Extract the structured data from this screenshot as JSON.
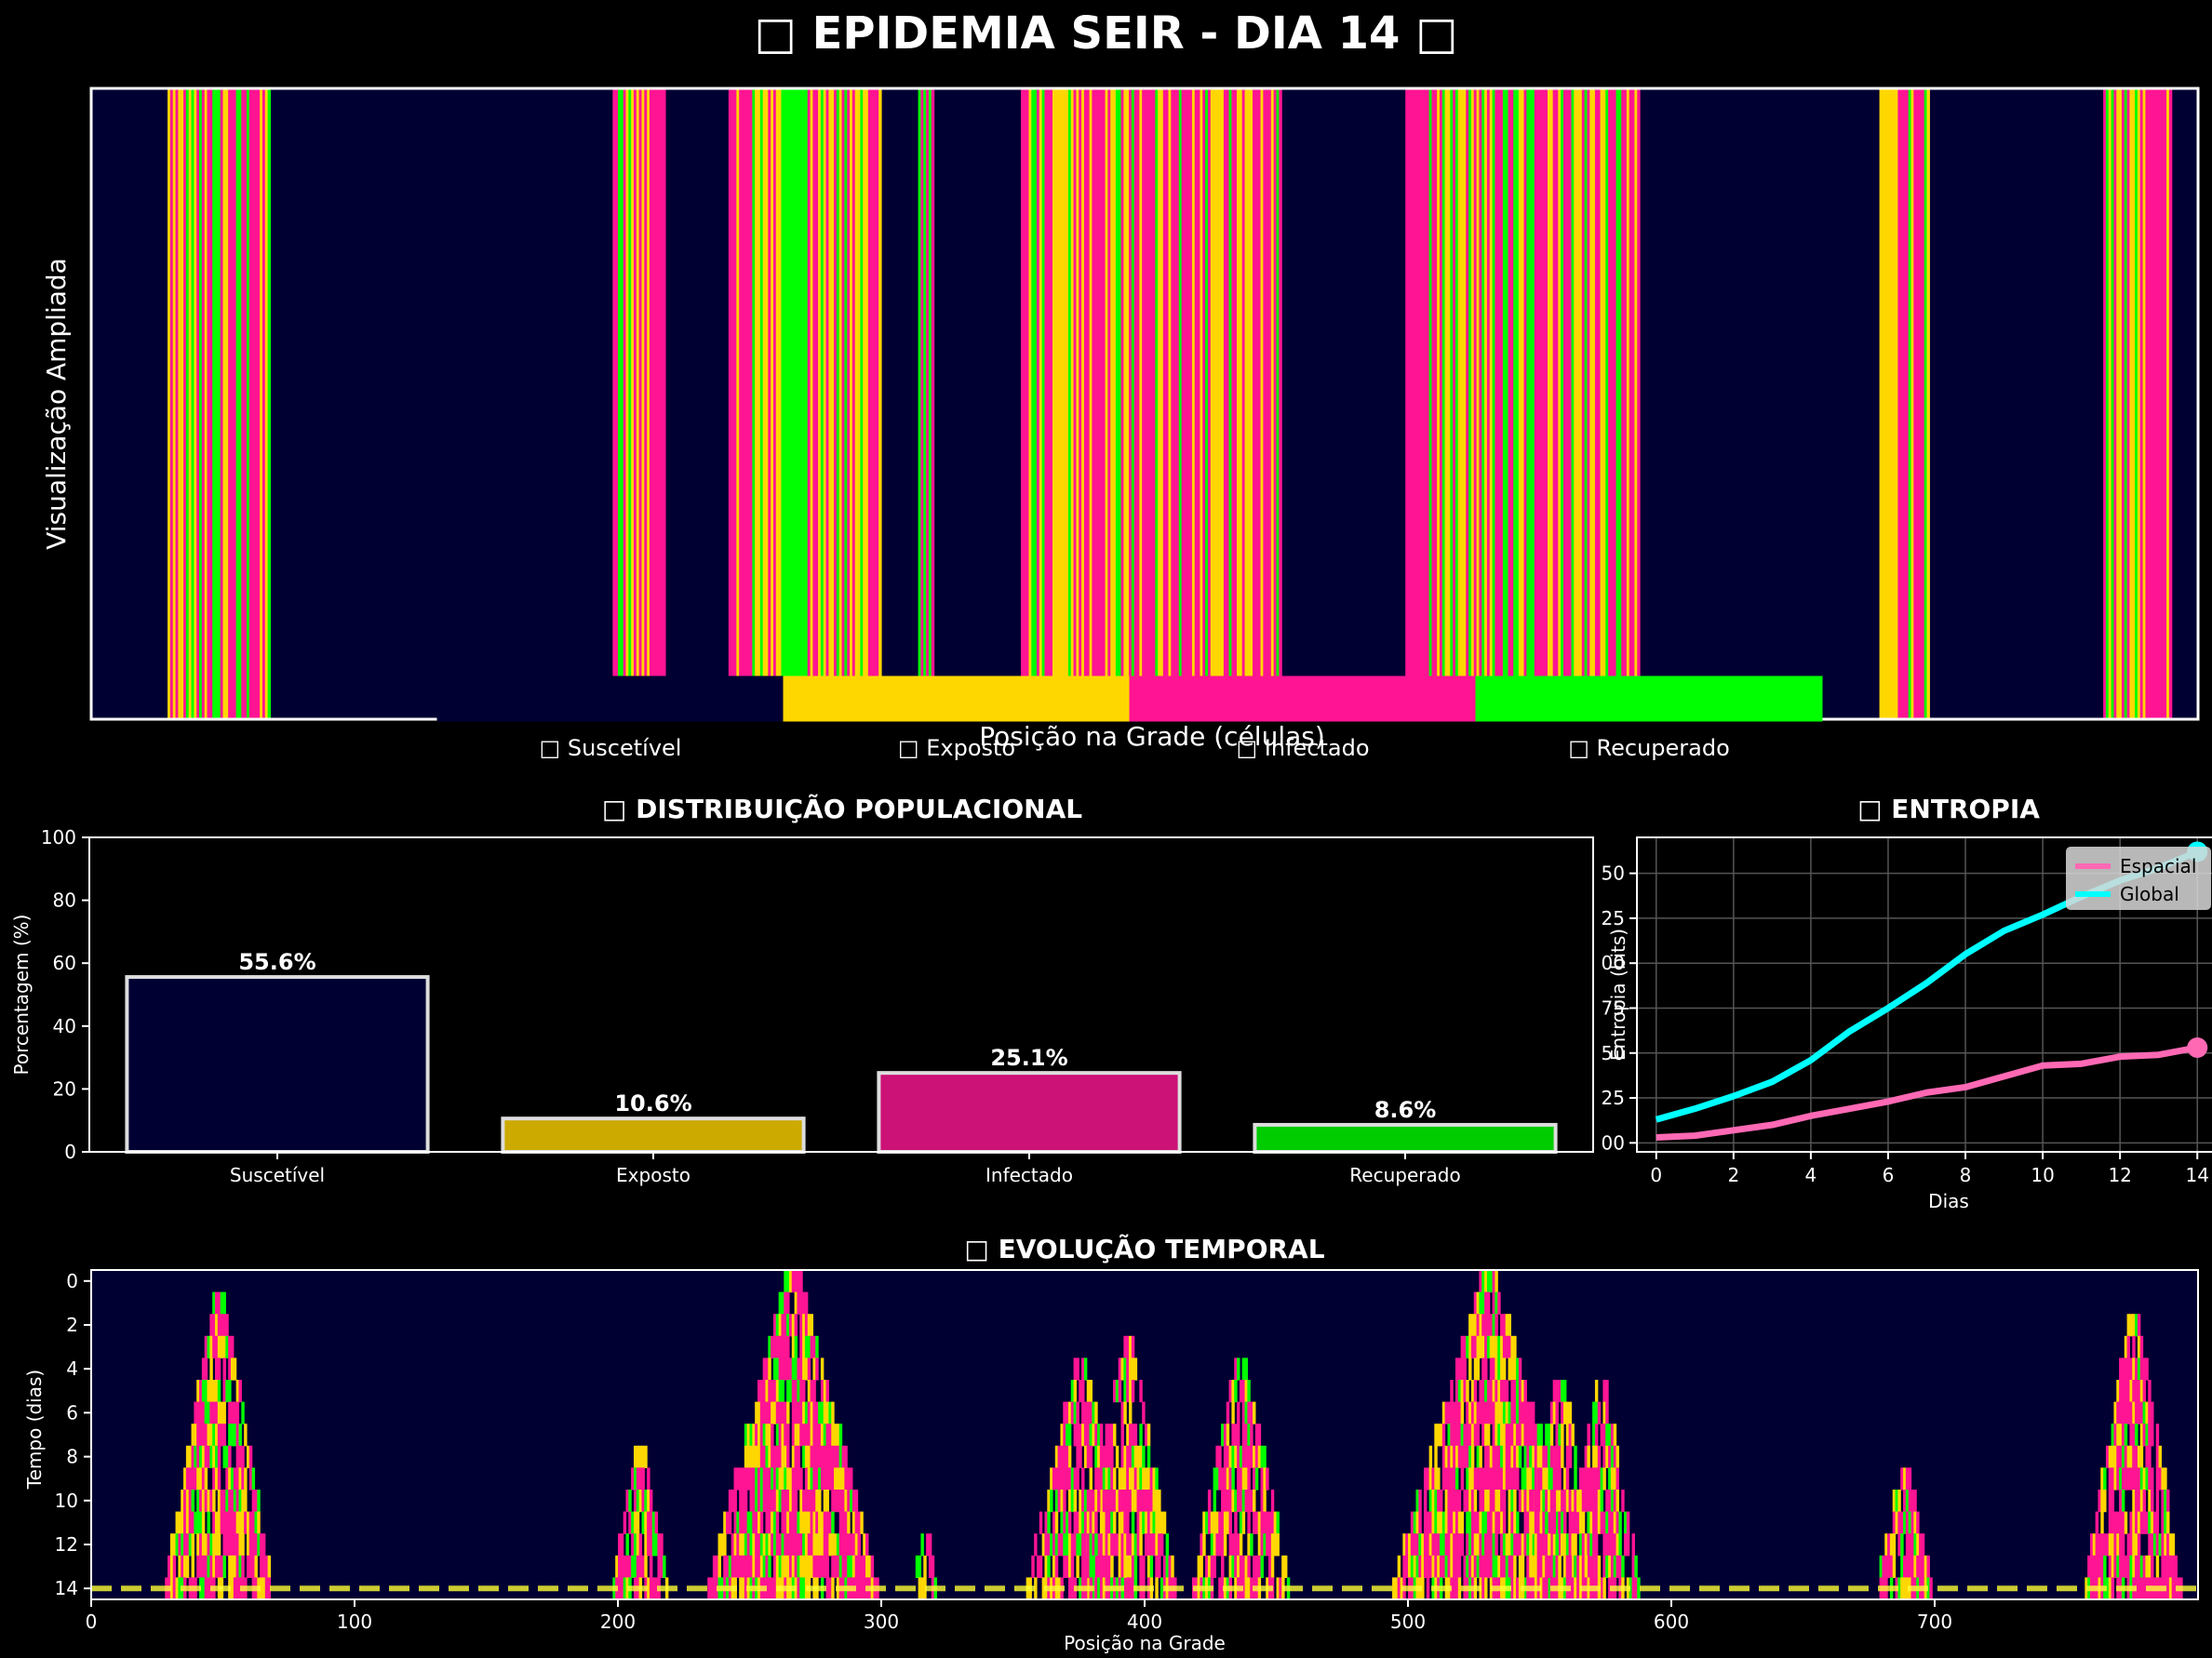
{
  "title": "□ EPIDEMIA SEIR - DIA 14 □",
  "colors": {
    "S": "#000033",
    "E": "#FFD700",
    "I": "#FF1493",
    "R": "#00FF00",
    "bg": "#000000"
  },
  "chart_data": [
    {
      "type": "heatmap",
      "name": "strip",
      "xlabel": "Posição na Grade (células)",
      "ylabel": "Visualização Ampliada",
      "legend": [
        "□ Suscetível",
        "□ Exposto",
        "□ Infectado",
        "□ Recuperado"
      ],
      "state_per_cell_day14_segments": [
        {
          "from": 0,
          "to": 29,
          "state": "S"
        },
        {
          "from": 29,
          "to": 68,
          "state": "mix"
        },
        {
          "from": 68,
          "to": 198,
          "state": "S"
        },
        {
          "from": 198,
          "to": 218,
          "state": "mix"
        },
        {
          "from": 218,
          "to": 242,
          "state": "S"
        },
        {
          "from": 242,
          "to": 262,
          "state": "mix"
        },
        {
          "from": 262,
          "to": 272,
          "state": "R"
        },
        {
          "from": 272,
          "to": 300,
          "state": "mix"
        },
        {
          "from": 300,
          "to": 314,
          "state": "S"
        },
        {
          "from": 314,
          "to": 320,
          "state": "mix"
        },
        {
          "from": 320,
          "to": 353,
          "state": "S"
        },
        {
          "from": 353,
          "to": 420,
          "state": "mix"
        },
        {
          "from": 420,
          "to": 452,
          "state": "mix"
        },
        {
          "from": 452,
          "to": 499,
          "state": "S"
        },
        {
          "from": 499,
          "to": 588,
          "state": "mix"
        },
        {
          "from": 588,
          "to": 679,
          "state": "S"
        },
        {
          "from": 679,
          "to": 698,
          "state": "mix"
        },
        {
          "from": 698,
          "to": 764,
          "state": "S"
        },
        {
          "from": 764,
          "to": 790,
          "state": "mix"
        },
        {
          "from": 790,
          "to": 800,
          "state": "S"
        }
      ]
    },
    {
      "type": "bar",
      "name": "distribution",
      "title": "□ DISTRIBUIÇÃO POPULACIONAL",
      "ylabel": "Porcentagem (%)",
      "categories": [
        "Suscetível",
        "Exposto",
        "Infectado",
        "Recuperado"
      ],
      "values": [
        55.6,
        10.6,
        25.1,
        8.6
      ],
      "labels": [
        "55.6%",
        "10.6%",
        "25.1%",
        "8.6%"
      ],
      "colors": [
        "#000033",
        "#CCAA00",
        "#CC1177",
        "#00CC00"
      ],
      "ylim": [
        0,
        100
      ],
      "yticks": [
        "0",
        "20",
        "40",
        "60",
        "80",
        "100"
      ]
    },
    {
      "type": "line",
      "name": "entropy",
      "title": "□ ENTROPIA",
      "xlabel": "Dias",
      "ylabel": "Entropia (bits)",
      "x": [
        0,
        1,
        2,
        3,
        4,
        5,
        6,
        7,
        8,
        9,
        10,
        11,
        12,
        13,
        14
      ],
      "series": [
        {
          "name": "Espacial",
          "color": "#FF69B4",
          "values": [
            0.03,
            0.04,
            0.07,
            0.1,
            0.15,
            0.19,
            0.23,
            0.28,
            0.31,
            0.37,
            0.43,
            0.44,
            0.48,
            0.49,
            0.53
          ]
        },
        {
          "name": "Global",
          "color": "#00FFFF",
          "values": [
            0.13,
            0.19,
            0.26,
            0.34,
            0.46,
            0.62,
            0.75,
            0.89,
            1.05,
            1.18,
            1.27,
            1.37,
            1.46,
            1.53,
            1.62
          ]
        }
      ],
      "xlim": [
        -0.5,
        14.5
      ],
      "ylim": [
        -0.05,
        1.7
      ],
      "xticks": [
        "0",
        "2",
        "4",
        "6",
        "8",
        "10",
        "12",
        "14"
      ],
      "yticks": [
        "0.00",
        "0.25",
        "0.50",
        "0.75",
        "1.00",
        "1.25",
        "1.50"
      ],
      "legend": "top-right",
      "grid": true
    },
    {
      "type": "heatmap",
      "name": "evolution",
      "title": "□ EVOLUÇÃO TEMPORAL",
      "xlabel": "Posição na Grade",
      "ylabel": "Tempo (dias)",
      "xticks": [
        "0",
        "100",
        "200",
        "300",
        "400",
        "500",
        "600",
        "700"
      ],
      "yticks": [
        "0",
        "2",
        "4",
        "6",
        "8",
        "10",
        "12",
        "14"
      ],
      "xlim": [
        0,
        800
      ],
      "ylim": [
        14.5,
        -0.5
      ],
      "current_day": 14,
      "outbreaks": [
        {
          "center": 48,
          "start_day": 1,
          "halfwidth": 20,
          "density": 0.85
        },
        {
          "center": 208,
          "start_day": 8,
          "halfwidth": 10,
          "density": 0.8
        },
        {
          "center": 266,
          "start_day": 0,
          "halfwidth": 32,
          "density": 0.9
        },
        {
          "center": 316,
          "start_day": 12,
          "halfwidth": 4,
          "density": 0.7
        },
        {
          "center": 375,
          "start_day": 4,
          "halfwidth": 20,
          "density": 0.8
        },
        {
          "center": 393,
          "start_day": 3,
          "halfwidth": 18,
          "density": 0.8
        },
        {
          "center": 436,
          "start_day": 4,
          "halfwidth": 18,
          "density": 0.8
        },
        {
          "center": 530,
          "start_day": 0,
          "halfwidth": 36,
          "density": 0.9
        },
        {
          "center": 557,
          "start_day": 5,
          "halfwidth": 16,
          "density": 0.8
        },
        {
          "center": 573,
          "start_day": 5,
          "halfwidth": 14,
          "density": 0.8
        },
        {
          "center": 688,
          "start_day": 9,
          "halfwidth": 10,
          "density": 0.8
        },
        {
          "center": 775,
          "start_day": 2,
          "halfwidth": 18,
          "density": 0.85
        }
      ]
    }
  ]
}
